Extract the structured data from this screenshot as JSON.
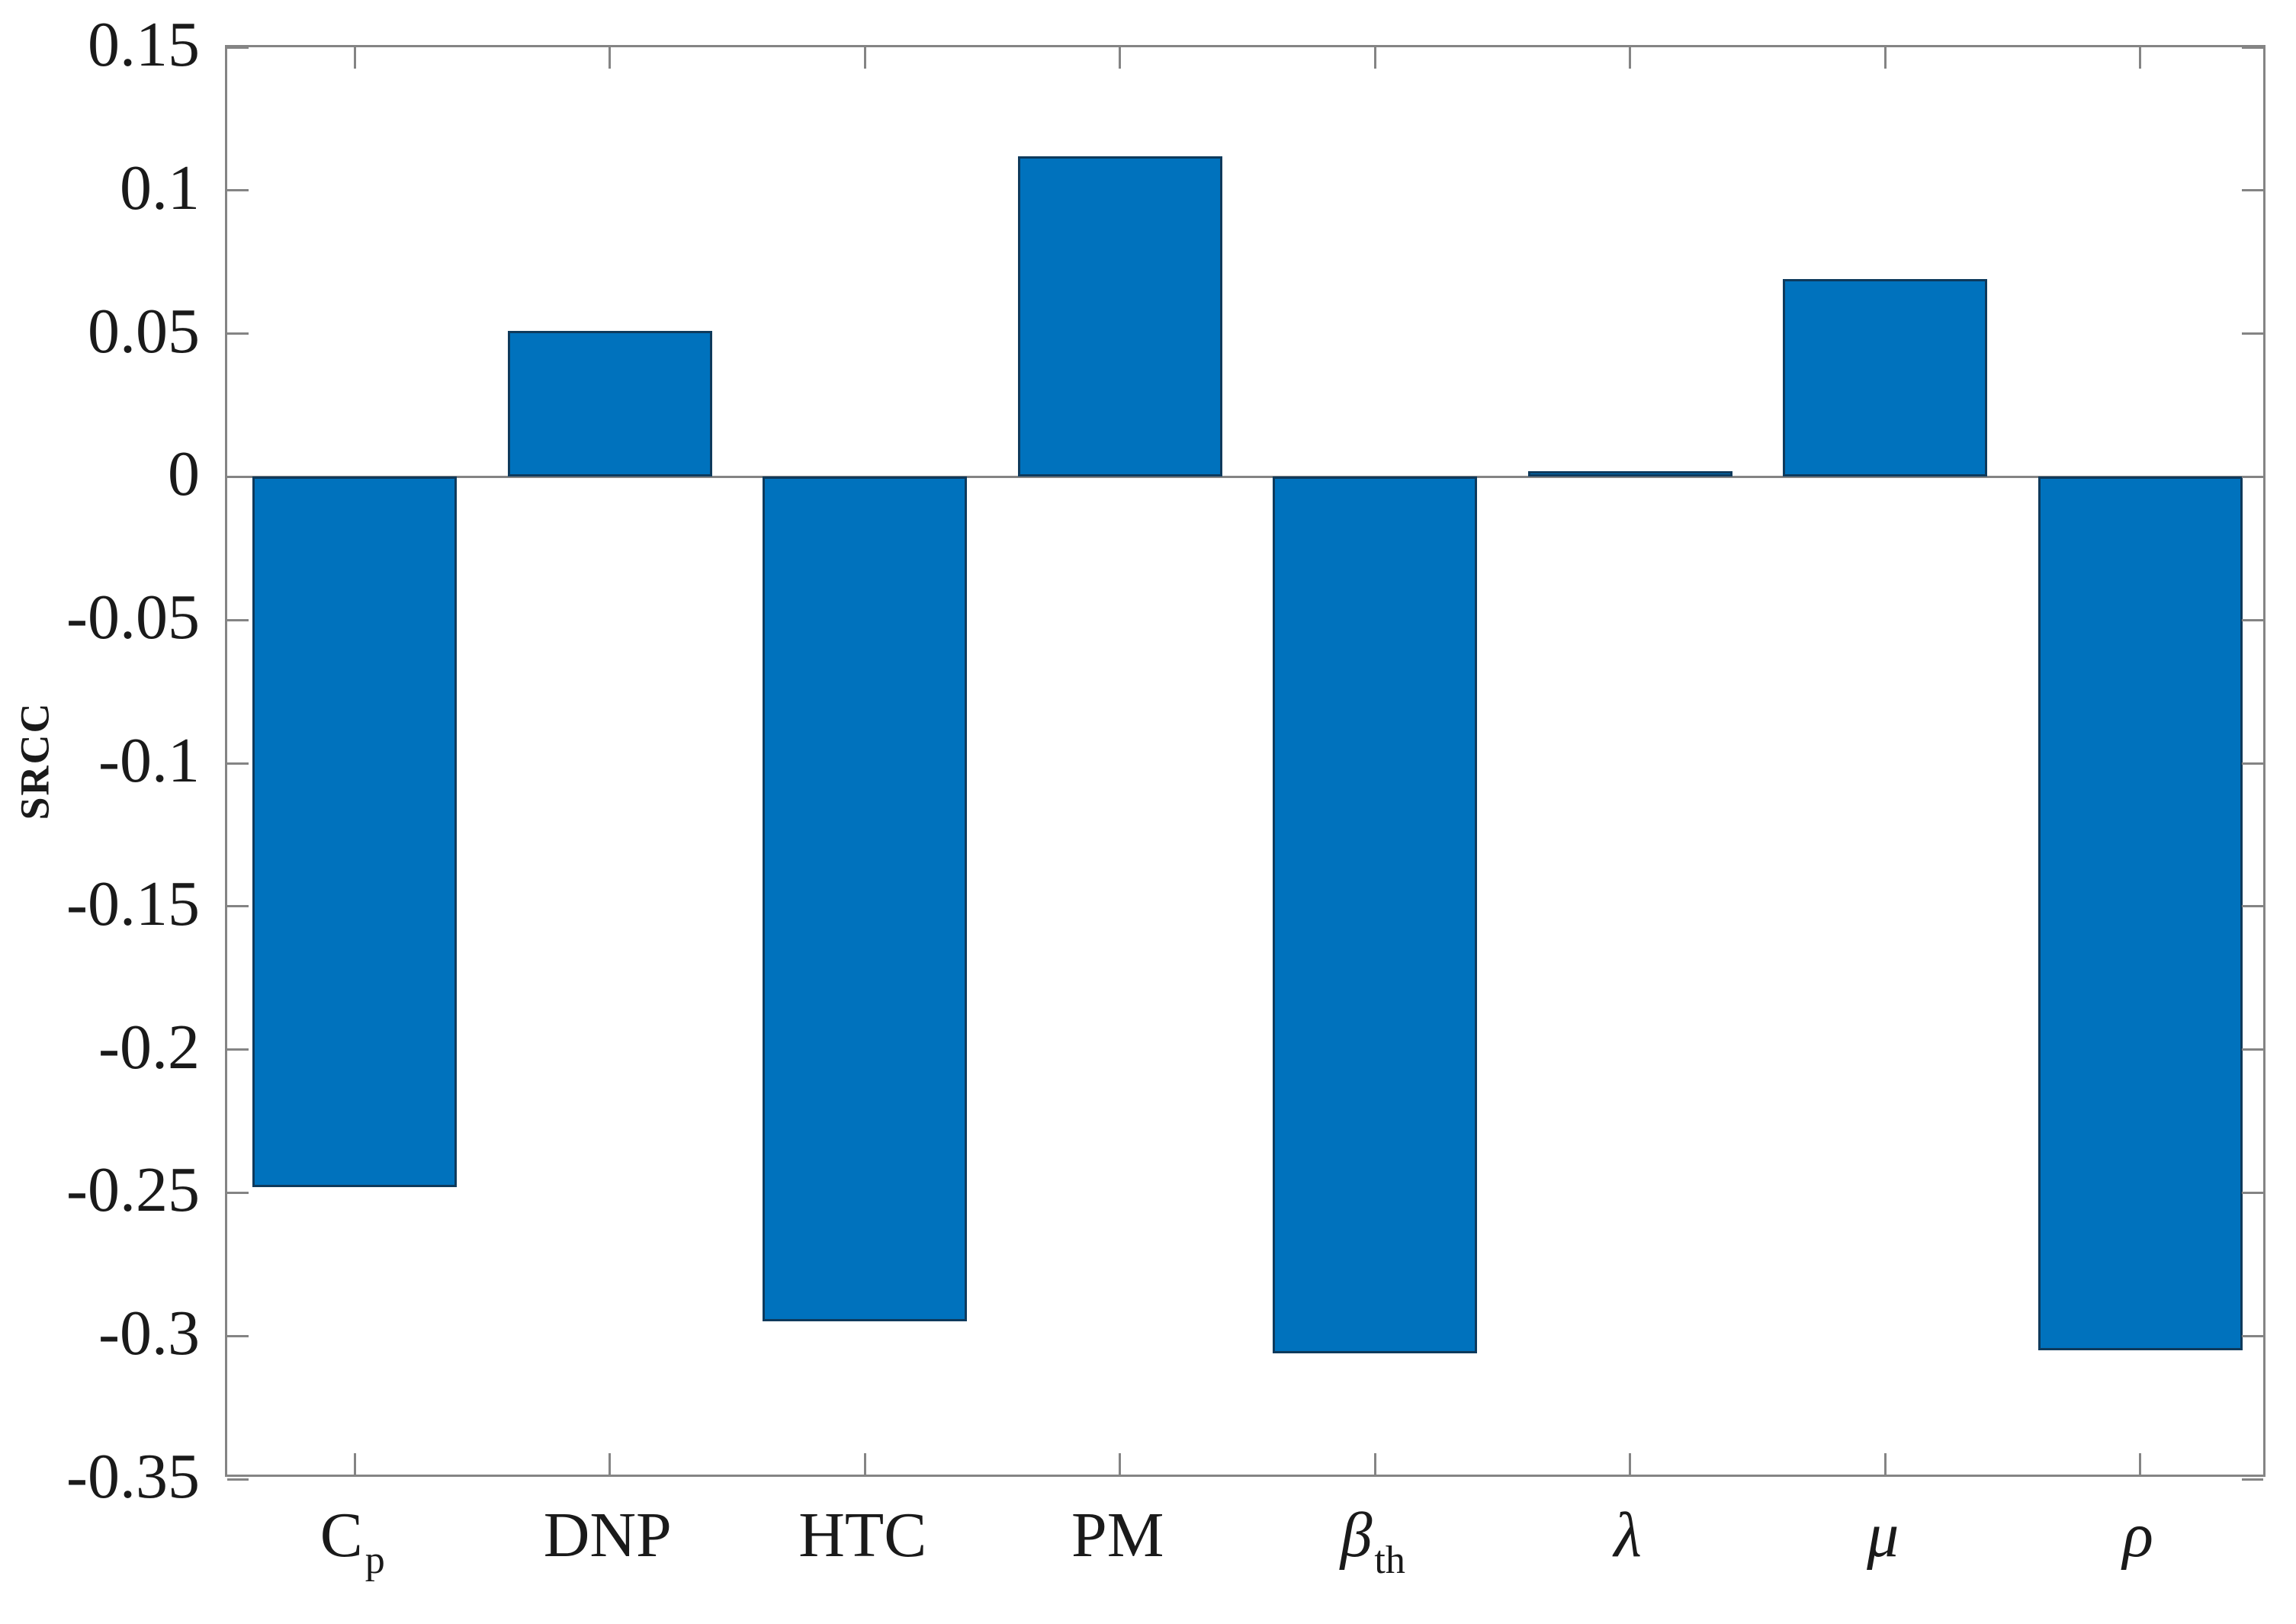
{
  "figure": {
    "background": "#ffffff"
  },
  "chart_data": {
    "type": "bar",
    "title": "",
    "xlabel": "",
    "ylabel": "SRCC",
    "ylim": [
      -0.35,
      0.15
    ],
    "grid": false,
    "legend": null,
    "yticks": [
      {
        "value": 0.15,
        "label": "0.15"
      },
      {
        "value": 0.1,
        "label": "0.1"
      },
      {
        "value": 0.05,
        "label": "0.05"
      },
      {
        "value": 0,
        "label": "0"
      },
      {
        "value": -0.05,
        "label": "-0.05"
      },
      {
        "value": -0.1,
        "label": "-0.1"
      },
      {
        "value": -0.15,
        "label": "-0.15"
      },
      {
        "value": -0.2,
        "label": "-0.2"
      },
      {
        "value": -0.25,
        "label": "-0.25"
      },
      {
        "value": -0.3,
        "label": "-0.3"
      },
      {
        "value": -0.35,
        "label": "-0.35"
      }
    ],
    "categories": [
      {
        "main": "C",
        "sub": "p",
        "italic": false
      },
      {
        "main": "DNP",
        "sub": "",
        "italic": false
      },
      {
        "main": "HTC",
        "sub": "",
        "italic": false
      },
      {
        "main": "PM",
        "sub": "",
        "italic": false
      },
      {
        "main": "β",
        "sub": "th",
        "italic": true
      },
      {
        "main": "λ",
        "sub": "",
        "italic": true
      },
      {
        "main": "μ",
        "sub": "",
        "italic": true
      },
      {
        "main": "ρ",
        "sub": "",
        "italic": true
      }
    ],
    "values": [
      -0.248,
      0.051,
      -0.295,
      0.112,
      -0.306,
      0.002,
      0.069,
      -0.305
    ],
    "bar_color": "#0072BD",
    "bar_edge_color": "#0e3a5c",
    "axis_color": "#848484",
    "text_color": "#1a1a1a"
  }
}
